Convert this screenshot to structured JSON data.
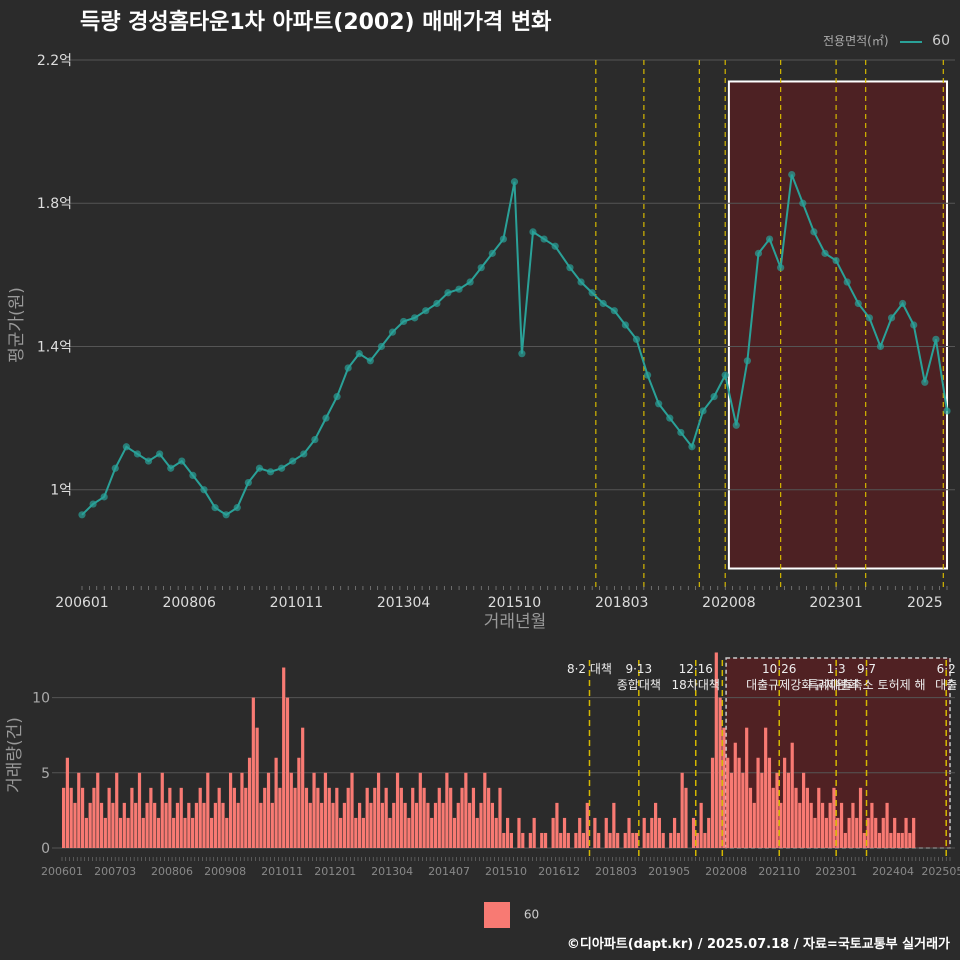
{
  "title": "득량 경성홈타운1차 아파트(2002) 매매가격 변화",
  "legend": {
    "title": "전용면적(㎡)",
    "entry": "60"
  },
  "credit": "©디아파트(dapt.kr) / 2025.07.18 / 자료=국토교통부 실거래가",
  "colors": {
    "price": "#2aa198",
    "volume": "#f87a73",
    "policy_line": "#d4b800",
    "highlight_fill": "#5a1f22",
    "background": "#2b2b2b"
  },
  "chart_data": [
    {
      "type": "line",
      "ylabel": "평균가(원)",
      "xlabel": "거래년월",
      "yticks": [
        {
          "value": 1.0,
          "label": "1억"
        },
        {
          "value": 1.4,
          "label": "1.4억"
        },
        {
          "value": 1.8,
          "label": "1.8억"
        },
        {
          "value": 2.2,
          "label": "2.2억"
        }
      ],
      "ylim": [
        0.72,
        2.2
      ],
      "xticks": [
        "200601",
        "200806",
        "201011",
        "201304",
        "201510",
        "201803",
        "202008",
        "202301",
        "2025"
      ],
      "x_range": [
        "2006-01",
        "2025-07"
      ],
      "highlight": {
        "from": "2020-08",
        "to": "2025-07",
        "ymin": 0.78,
        "ymax": 2.14
      },
      "series": [
        {
          "name": "60",
          "points": [
            [
              "2006-01",
              0.93
            ],
            [
              "2006-04",
              0.96
            ],
            [
              "2006-07",
              0.98
            ],
            [
              "2006-10",
              1.06
            ],
            [
              "2007-01",
              1.12
            ],
            [
              "2007-04",
              1.1
            ],
            [
              "2007-07",
              1.08
            ],
            [
              "2007-10",
              1.1
            ],
            [
              "2008-01",
              1.06
            ],
            [
              "2008-04",
              1.08
            ],
            [
              "2008-07",
              1.04
            ],
            [
              "2008-10",
              1.0
            ],
            [
              "2009-01",
              0.95
            ],
            [
              "2009-04",
              0.93
            ],
            [
              "2009-07",
              0.95
            ],
            [
              "2009-10",
              1.02
            ],
            [
              "2010-01",
              1.06
            ],
            [
              "2010-04",
              1.05
            ],
            [
              "2010-07",
              1.06
            ],
            [
              "2010-10",
              1.08
            ],
            [
              "2011-01",
              1.1
            ],
            [
              "2011-04",
              1.14
            ],
            [
              "2011-07",
              1.2
            ],
            [
              "2011-10",
              1.26
            ],
            [
              "2012-01",
              1.34
            ],
            [
              "2012-04",
              1.38
            ],
            [
              "2012-07",
              1.36
            ],
            [
              "2012-10",
              1.4
            ],
            [
              "2013-01",
              1.44
            ],
            [
              "2013-04",
              1.47
            ],
            [
              "2013-07",
              1.48
            ],
            [
              "2013-10",
              1.5
            ],
            [
              "2014-01",
              1.52
            ],
            [
              "2014-04",
              1.55
            ],
            [
              "2014-07",
              1.56
            ],
            [
              "2014-10",
              1.58
            ],
            [
              "2015-01",
              1.62
            ],
            [
              "2015-04",
              1.66
            ],
            [
              "2015-07",
              1.7
            ],
            [
              "2015-10",
              1.86
            ],
            [
              "2015-12",
              1.38
            ],
            [
              "2016-03",
              1.72
            ],
            [
              "2016-06",
              1.7
            ],
            [
              "2016-09",
              1.68
            ],
            [
              "2017-01",
              1.62
            ],
            [
              "2017-04",
              1.58
            ],
            [
              "2017-07",
              1.55
            ],
            [
              "2017-10",
              1.52
            ],
            [
              "2018-01",
              1.5
            ],
            [
              "2018-04",
              1.46
            ],
            [
              "2018-07",
              1.42
            ],
            [
              "2018-10",
              1.32
            ],
            [
              "2019-01",
              1.24
            ],
            [
              "2019-04",
              1.2
            ],
            [
              "2019-07",
              1.16
            ],
            [
              "2019-10",
              1.12
            ],
            [
              "2020-01",
              1.22
            ],
            [
              "2020-04",
              1.26
            ],
            [
              "2020-07",
              1.32
            ],
            [
              "2020-10",
              1.18
            ],
            [
              "2021-01",
              1.36
            ],
            [
              "2021-04",
              1.66
            ],
            [
              "2021-07",
              1.7
            ],
            [
              "2021-10",
              1.62
            ],
            [
              "2022-01",
              1.88
            ],
            [
              "2022-04",
              1.8
            ],
            [
              "2022-07",
              1.72
            ],
            [
              "2022-10",
              1.66
            ],
            [
              "2023-01",
              1.64
            ],
            [
              "2023-04",
              1.58
            ],
            [
              "2023-07",
              1.52
            ],
            [
              "2023-10",
              1.48
            ],
            [
              "2024-01",
              1.4
            ],
            [
              "2024-04",
              1.48
            ],
            [
              "2024-07",
              1.52
            ],
            [
              "2024-10",
              1.46
            ],
            [
              "2025-01",
              1.3
            ],
            [
              "2025-04",
              1.42
            ],
            [
              "2025-07",
              1.22
            ]
          ]
        }
      ]
    },
    {
      "type": "bar",
      "ylabel": "거래량(건)",
      "yticks": [
        0,
        5,
        10
      ],
      "ylim": [
        0,
        12.5
      ],
      "xticks": [
        "200601",
        "200703",
        "200806",
        "200908",
        "201011",
        "201201",
        "201304",
        "201407",
        "201510",
        "201612",
        "201803",
        "201905",
        "202008",
        "202110",
        "202301",
        "202404",
        "202505"
      ],
      "x_range": [
        "2006-01",
        "2025-07"
      ],
      "highlight": {
        "from": "2020-08",
        "to": "2025-07"
      },
      "series": [
        {
          "name": "60",
          "values": [
            4,
            6,
            4,
            3,
            5,
            4,
            2,
            3,
            4,
            5,
            3,
            2,
            4,
            3,
            5,
            2,
            3,
            2,
            4,
            3,
            5,
            2,
            3,
            4,
            3,
            2,
            5,
            3,
            4,
            2,
            3,
            4,
            2,
            3,
            2,
            3,
            4,
            3,
            5,
            2,
            3,
            4,
            3,
            2,
            5,
            4,
            3,
            5,
            4,
            6,
            10,
            8,
            3,
            4,
            5,
            3,
            6,
            4,
            12,
            10,
            5,
            4,
            6,
            8,
            4,
            3,
            5,
            4,
            3,
            5,
            4,
            3,
            4,
            2,
            3,
            4,
            5,
            2,
            3,
            2,
            4,
            3,
            4,
            5,
            3,
            4,
            2,
            3,
            5,
            4,
            3,
            2,
            4,
            3,
            5,
            4,
            3,
            2,
            3,
            4,
            3,
            5,
            4,
            2,
            3,
            4,
            5,
            3,
            4,
            2,
            3,
            5,
            4,
            3,
            2,
            4,
            1,
            2,
            1,
            0,
            2,
            1,
            0,
            1,
            2,
            0,
            1,
            1,
            0,
            2,
            3,
            1,
            2,
            1,
            0,
            1,
            2,
            1,
            3,
            0,
            2,
            1,
            0,
            2,
            1,
            3,
            1,
            0,
            1,
            2,
            1,
            1,
            0,
            2,
            1,
            2,
            3,
            2,
            1,
            0,
            1,
            2,
            1,
            5,
            4,
            0,
            2,
            1,
            3,
            1,
            2,
            6,
            13,
            10,
            8,
            6,
            5,
            7,
            6,
            5,
            8,
            4,
            3,
            6,
            5,
            8,
            6,
            4,
            5,
            3,
            6,
            5,
            7,
            4,
            3,
            5,
            4,
            3,
            2,
            4,
            3,
            2,
            3,
            4,
            2,
            3,
            1,
            2,
            3,
            2,
            4,
            1,
            2,
            3,
            2,
            1,
            2,
            3,
            1,
            2,
            1,
            1,
            2,
            1,
            2
          ]
        }
      ],
      "policies": [
        {
          "date": "2017-08",
          "label": "8·2 대책"
        },
        {
          "date": "2018-09",
          "label": "9·13\n종합대책"
        },
        {
          "date": "2019-12",
          "label": "12·16\n18차대책"
        },
        {
          "date": "2020-07",
          "label": ""
        },
        {
          "date": "2021-10",
          "label": "10·26\n대출규제강화"
        },
        {
          "date": "2023-01",
          "label": "1·3\n규제완화"
        },
        {
          "date": "2023-09",
          "label": "9·7\n특례대출축소 토허제 해"
        },
        {
          "date": "2025-06",
          "label": "6·2\n대출"
        }
      ]
    }
  ]
}
